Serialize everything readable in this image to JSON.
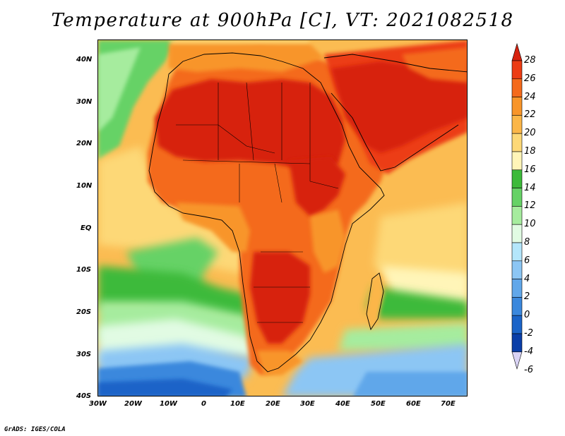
{
  "title": "Temperature at 900hPa [C], VT: 2021082518",
  "credit": "GrADS: IGES/COLA",
  "map": {
    "region": "Africa",
    "lon_range": [
      -30,
      75
    ],
    "lat_range": [
      -40,
      45
    ],
    "lon_ticks": [
      "30W",
      "20W",
      "10W",
      "0",
      "10E",
      "20E",
      "30E",
      "40E",
      "50E",
      "60E",
      "70E"
    ],
    "lat_ticks": [
      "40N",
      "30N",
      "20N",
      "10N",
      "EQ",
      "10S",
      "20S",
      "30S",
      "40S"
    ],
    "field": "temperature",
    "units": "C"
  },
  "colorbar": {
    "labels": [
      "28",
      "26",
      "24",
      "22",
      "20",
      "18",
      "16",
      "14",
      "12",
      "10",
      "8",
      "6",
      "4",
      "2",
      "0",
      "-2",
      "-4",
      "-6"
    ],
    "colors": [
      "#d7220f",
      "#ec3c14",
      "#f46a1c",
      "#f8952a",
      "#fbb648",
      "#fdd877",
      "#fff5b8",
      "#3dba3a",
      "#66d266",
      "#a6ec9e",
      "#e1fbe3",
      "#b4e6fb",
      "#8cc6f4",
      "#61a7ea",
      "#3b88dd",
      "#1b64c8",
      "#0a3ea8",
      "#04207e"
    ]
  },
  "chart_data": {
    "type": "heatmap",
    "title": "Temperature at 900hPa [C], VT: 2021082518",
    "x_range": [
      -30,
      75
    ],
    "y_range": [
      -40,
      45
    ],
    "value_range": [
      -6,
      28
    ],
    "legend": "right"
  }
}
